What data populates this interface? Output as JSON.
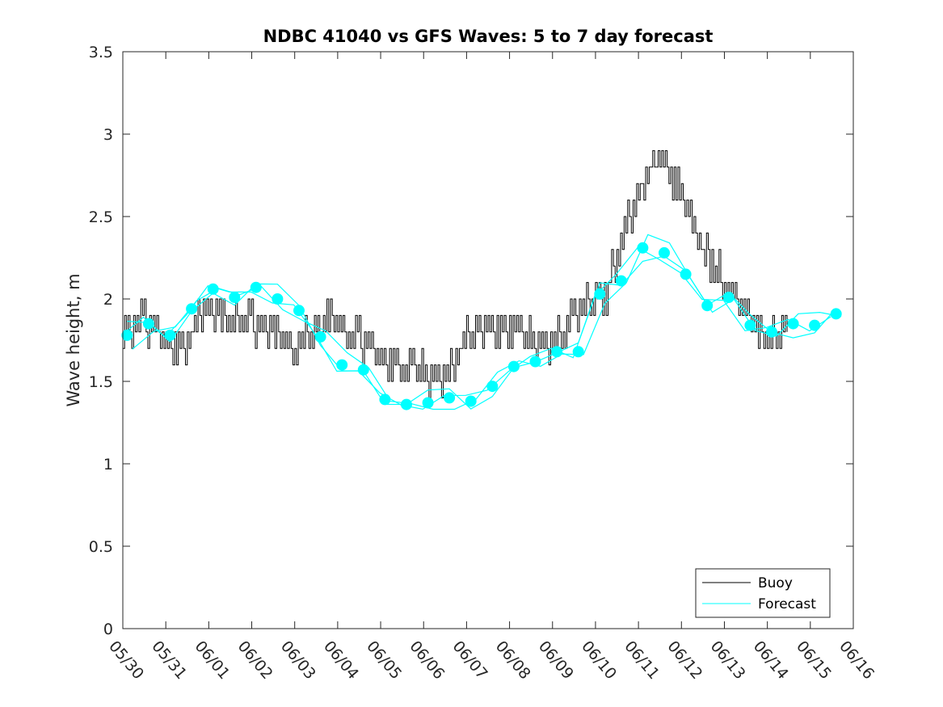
{
  "chart_data": {
    "type": "line",
    "title": "NDBC 41040 vs GFS Waves: 5 to 7 day forecast",
    "xlabel": "",
    "ylabel": "Wave height, m",
    "x_tick_labels": [
      "05/30",
      "05/31",
      "06/01",
      "06/02",
      "06/03",
      "06/04",
      "06/05",
      "06/06",
      "06/07",
      "06/08",
      "06/09",
      "06/10",
      "06/11",
      "06/12",
      "06/13",
      "06/14",
      "06/15",
      "06/16"
    ],
    "y_tick_labels": [
      "0",
      "0.5",
      "1",
      "1.5",
      "2",
      "2.5",
      "3",
      "3.5"
    ],
    "xlim": [
      0,
      17
    ],
    "ylim": [
      0,
      3.5
    ],
    "grid": false,
    "legend_position": "bottom-right",
    "colors": {
      "buoy": "#000000",
      "forecast": "#00ffff",
      "axis": "#262626"
    },
    "series": [
      {
        "name": "Buoy",
        "style": "line",
        "x_days": [
          0,
          0.25,
          0.5,
          0.75,
          1.0,
          1.25,
          1.5,
          1.75,
          2.0,
          2.25,
          2.5,
          2.75,
          3.0,
          3.25,
          3.5,
          3.75,
          4.0,
          4.25,
          4.5,
          4.75,
          5.0,
          5.25,
          5.5,
          5.75,
          6.0,
          6.25,
          6.5,
          6.75,
          7.0,
          7.25,
          7.5,
          7.75,
          8.0,
          8.25,
          8.5,
          8.75,
          9.0,
          9.25,
          9.5,
          9.75,
          10.0,
          10.25,
          10.5,
          10.75,
          11.0,
          11.25,
          11.5,
          11.75,
          12.0,
          12.25,
          12.5,
          12.75,
          13.0,
          13.25,
          13.5,
          13.75,
          14.0,
          14.25,
          14.5,
          14.75,
          15.0,
          15.25,
          15.5
        ],
        "values": [
          1.8,
          1.85,
          1.85,
          1.8,
          1.75,
          1.7,
          1.75,
          1.85,
          1.95,
          1.9,
          1.85,
          1.85,
          1.85,
          1.8,
          1.8,
          1.75,
          1.7,
          1.75,
          1.8,
          1.9,
          1.85,
          1.8,
          1.75,
          1.7,
          1.65,
          1.6,
          1.6,
          1.55,
          1.55,
          1.5,
          1.55,
          1.65,
          1.75,
          1.8,
          1.85,
          1.8,
          1.85,
          1.8,
          1.75,
          1.7,
          1.75,
          1.8,
          1.9,
          1.95,
          2.0,
          2.05,
          2.25,
          2.45,
          2.6,
          2.8,
          2.9,
          2.75,
          2.6,
          2.45,
          2.3,
          2.2,
          2.1,
          2.0,
          1.9,
          1.8,
          1.75,
          1.8,
          1.8
        ]
      },
      {
        "name": "Forecast",
        "style": "line+markers",
        "x_days": [
          0.1,
          0.6,
          1.1,
          1.6,
          2.1,
          2.6,
          3.1,
          3.6,
          4.1,
          4.6,
          5.1,
          5.6,
          6.1,
          6.6,
          7.1,
          7.6,
          8.1,
          8.6,
          9.1,
          9.6,
          10.1,
          10.6,
          11.1,
          11.6,
          12.1,
          12.6,
          13.1,
          13.6,
          14.1,
          14.6,
          15.1,
          15.6,
          16.1,
          16.6
        ],
        "values": [
          1.78,
          1.85,
          1.78,
          1.94,
          2.06,
          2.01,
          2.07,
          2.0,
          1.93,
          1.77,
          1.6,
          1.57,
          1.39,
          1.36,
          1.37,
          1.4,
          1.38,
          1.47,
          1.59,
          1.62,
          1.68,
          1.68,
          2.03,
          2.11,
          2.31,
          2.28,
          2.15,
          1.96,
          2.01,
          1.84,
          1.8,
          1.85,
          1.84,
          1.91
        ]
      }
    ]
  },
  "legend": {
    "buoy_label": "Buoy",
    "forecast_label": "Forecast"
  }
}
